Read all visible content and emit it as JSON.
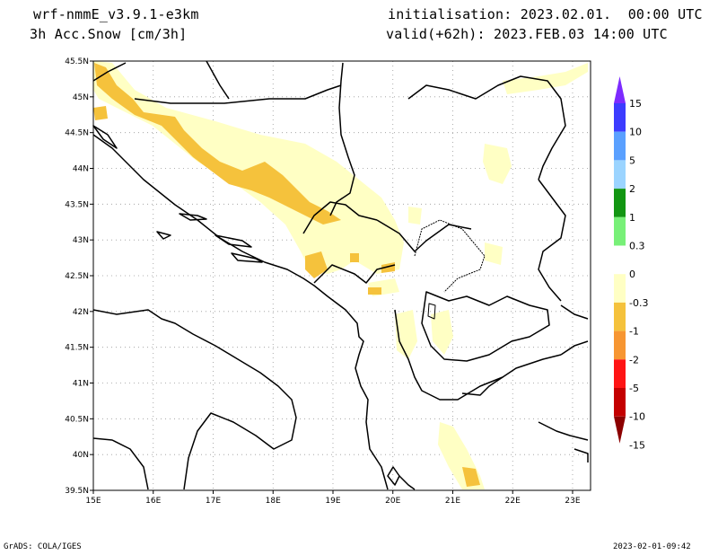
{
  "header": {
    "model": "wrf-nmmE_v3.9.1-e3km",
    "variable": "3h Acc.Snow [cm/3h]",
    "initialisation": "initialisation: 2023.02.01.  00:00 UTC",
    "valid": "valid(+62h): 2023.FEB.03 14:00 UTC"
  },
  "footer": {
    "left": "GrADS: COLA/IGES",
    "right": "2023-02-01-09:42"
  },
  "map": {
    "lat_labels": [
      "45.5N",
      "45N",
      "44.5N",
      "44N",
      "43.5N",
      "43N",
      "42.5N",
      "42N",
      "41.5N",
      "41N",
      "40.5N",
      "40N",
      "39.5N"
    ],
    "lon_labels": [
      "15E",
      "16E",
      "17E",
      "18E",
      "19E",
      "20E",
      "21E",
      "22E",
      "23E"
    ],
    "lat_range": [
      39.5,
      45.5
    ],
    "lon_range": [
      15,
      23.3
    ],
    "grid": true
  },
  "colorbar": {
    "labels": [
      "15",
      "10",
      "5",
      "2",
      "1",
      "0.3",
      "0",
      "-0.3",
      "-1",
      "-2",
      "-5",
      "-10",
      "-15"
    ],
    "colors": [
      "#7d2bff",
      "#3c3cff",
      "#5aa0ff",
      "#9bd4ff",
      "#129612",
      "#78f078",
      "#ffffff",
      "#ffffc4",
      "#f5c23c",
      "#f79632",
      "#ff1414",
      "#c40000",
      "#8c0000"
    ]
  }
}
